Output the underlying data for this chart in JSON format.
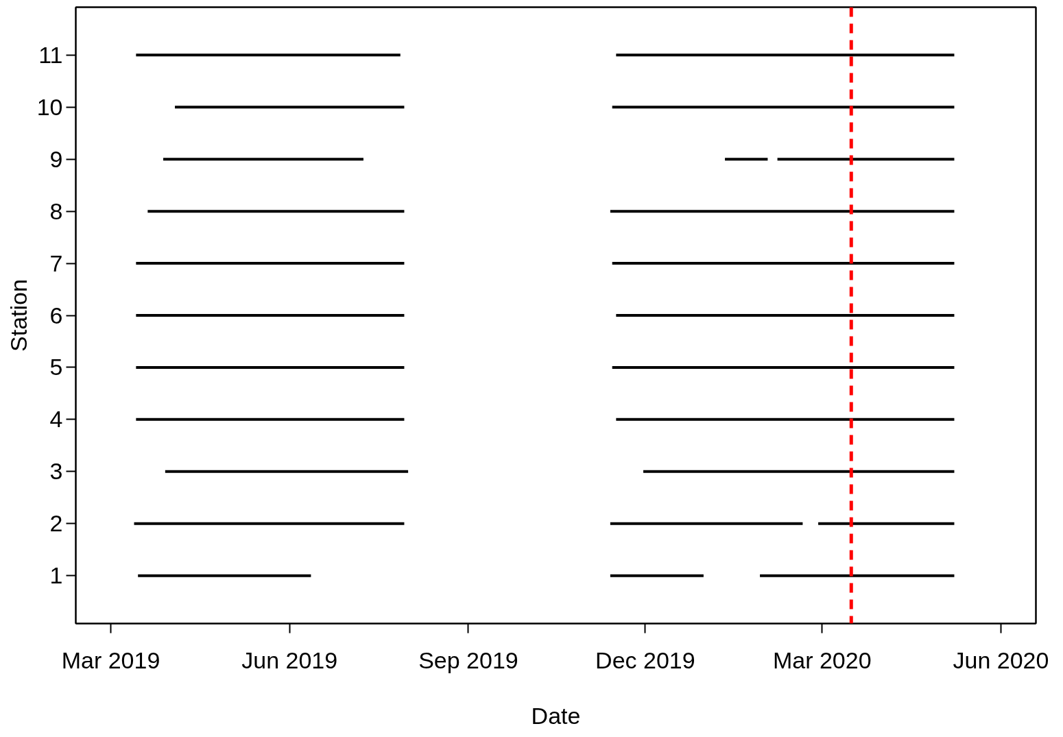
{
  "chart_data": {
    "type": "line",
    "xlabel": "Date",
    "ylabel": "Station",
    "xlim": [
      "2019-02-11",
      "2020-06-19"
    ],
    "ylim": [
      0.08,
      11.92
    ],
    "xticks": [
      {
        "value": "2019-03-01",
        "label": "Mar 2019"
      },
      {
        "value": "2019-06-01",
        "label": "Jun 2019"
      },
      {
        "value": "2019-09-01",
        "label": "Sep 2019"
      },
      {
        "value": "2019-12-01",
        "label": "Dec 2019"
      },
      {
        "value": "2020-03-01",
        "label": "Mar 2020"
      },
      {
        "value": "2020-06-01",
        "label": "Jun 2020"
      }
    ],
    "yticks": [
      1,
      2,
      3,
      4,
      5,
      6,
      7,
      8,
      9,
      10,
      11
    ],
    "grid": false,
    "marker": "none",
    "line_style": "solid",
    "series": [
      {
        "color": "#000000",
        "x": [
          "2019-03-15",
          "2019-06-12"
        ],
        "values": [
          1,
          1
        ]
      },
      {
        "color": "#000000",
        "x": [
          "2019-11-13",
          "2019-12-31"
        ],
        "values": [
          1,
          1
        ]
      },
      {
        "color": "#000000",
        "x": [
          "2020-01-29",
          "2020-05-08"
        ],
        "values": [
          1,
          1
        ]
      },
      {
        "color": "#000000",
        "x": [
          "2019-03-13",
          "2019-07-30"
        ],
        "values": [
          2,
          2
        ]
      },
      {
        "color": "#000000",
        "x": [
          "2019-11-13",
          "2020-02-20"
        ],
        "values": [
          2,
          2
        ]
      },
      {
        "color": "#000000",
        "x": [
          "2020-02-28",
          "2020-05-08"
        ],
        "values": [
          2,
          2
        ]
      },
      {
        "color": "#000000",
        "x": [
          "2019-03-29",
          "2019-08-01"
        ],
        "values": [
          3,
          3
        ]
      },
      {
        "color": "#000000",
        "x": [
          "2019-11-30",
          "2020-05-08"
        ],
        "values": [
          3,
          3
        ]
      },
      {
        "color": "#000000",
        "x": [
          "2019-03-14",
          "2019-07-30"
        ],
        "values": [
          4,
          4
        ]
      },
      {
        "color": "#000000",
        "x": [
          "2019-11-16",
          "2020-05-08"
        ],
        "values": [
          4,
          4
        ]
      },
      {
        "color": "#000000",
        "x": [
          "2019-03-14",
          "2019-07-30"
        ],
        "values": [
          5,
          5
        ]
      },
      {
        "color": "#000000",
        "x": [
          "2019-11-14",
          "2020-05-08"
        ],
        "values": [
          5,
          5
        ]
      },
      {
        "color": "#000000",
        "x": [
          "2019-03-14",
          "2019-07-30"
        ],
        "values": [
          6,
          6
        ]
      },
      {
        "color": "#000000",
        "x": [
          "2019-11-16",
          "2020-05-08"
        ],
        "values": [
          6,
          6
        ]
      },
      {
        "color": "#000000",
        "x": [
          "2019-03-14",
          "2019-07-30"
        ],
        "values": [
          7,
          7
        ]
      },
      {
        "color": "#000000",
        "x": [
          "2019-11-14",
          "2020-05-08"
        ],
        "values": [
          7,
          7
        ]
      },
      {
        "color": "#000000",
        "x": [
          "2019-03-20",
          "2019-07-30"
        ],
        "values": [
          8,
          8
        ]
      },
      {
        "color": "#000000",
        "x": [
          "2019-11-13",
          "2020-05-08"
        ],
        "values": [
          8,
          8
        ]
      },
      {
        "color": "#000000",
        "x": [
          "2019-03-28",
          "2019-07-09"
        ],
        "values": [
          9,
          9
        ]
      },
      {
        "color": "#000000",
        "x": [
          "2020-01-11",
          "2020-02-02"
        ],
        "values": [
          9,
          9
        ]
      },
      {
        "color": "#000000",
        "x": [
          "2020-02-07",
          "2020-05-08"
        ],
        "values": [
          9,
          9
        ]
      },
      {
        "color": "#000000",
        "x": [
          "2019-04-03",
          "2019-07-30"
        ],
        "values": [
          10,
          10
        ]
      },
      {
        "color": "#000000",
        "x": [
          "2019-11-14",
          "2020-05-08"
        ],
        "values": [
          10,
          10
        ]
      },
      {
        "color": "#000000",
        "x": [
          "2019-03-14",
          "2019-07-28"
        ],
        "values": [
          11,
          11
        ]
      },
      {
        "color": "#000000",
        "x": [
          "2019-11-16",
          "2020-05-08"
        ],
        "values": [
          11,
          11
        ]
      }
    ],
    "ref_lines": [
      {
        "axis": "x",
        "value": "2020-03-16",
        "color": "#ff0000",
        "line_style": "dashed"
      }
    ]
  }
}
